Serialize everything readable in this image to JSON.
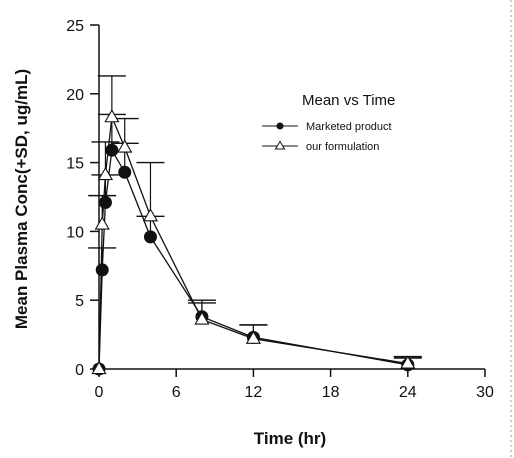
{
  "chart_data": {
    "type": "line",
    "xlabel": "Time (hr)",
    "ylabel": "Mean Plasma Conc(+SD, ug/mL)",
    "xlim": [
      0,
      30
    ],
    "ylim": [
      0,
      25
    ],
    "xticks": [
      0,
      6,
      12,
      18,
      24,
      30
    ],
    "yticks": [
      0,
      5,
      10,
      15,
      20,
      25
    ],
    "grid": false,
    "legend": {
      "title": "Mean vs Time",
      "placement": "upper-right"
    },
    "series": [
      {
        "name": "Marketed product",
        "marker": "filled-circle",
        "color": "#111111",
        "x": [
          0,
          0.25,
          0.5,
          1,
          2,
          4,
          8,
          12,
          24
        ],
        "y": [
          0,
          7.2,
          12.1,
          15.9,
          14.3,
          9.6,
          3.8,
          2.3,
          0.3
        ],
        "sd": [
          0,
          1.6,
          2.0,
          2.6,
          2.1,
          1.5,
          1.2,
          0.9,
          0.5
        ]
      },
      {
        "name": "our formulation",
        "marker": "open-triangle",
        "color": "#111111",
        "x": [
          0,
          0.25,
          0.5,
          1,
          2,
          4,
          8,
          12,
          24
        ],
        "y": [
          0,
          10.5,
          14.1,
          18.3,
          16.1,
          11.1,
          3.6,
          2.2,
          0.4
        ],
        "sd": [
          0,
          2.1,
          2.4,
          3.0,
          2.1,
          3.9,
          1.2,
          1.0,
          0.5
        ]
      }
    ]
  }
}
